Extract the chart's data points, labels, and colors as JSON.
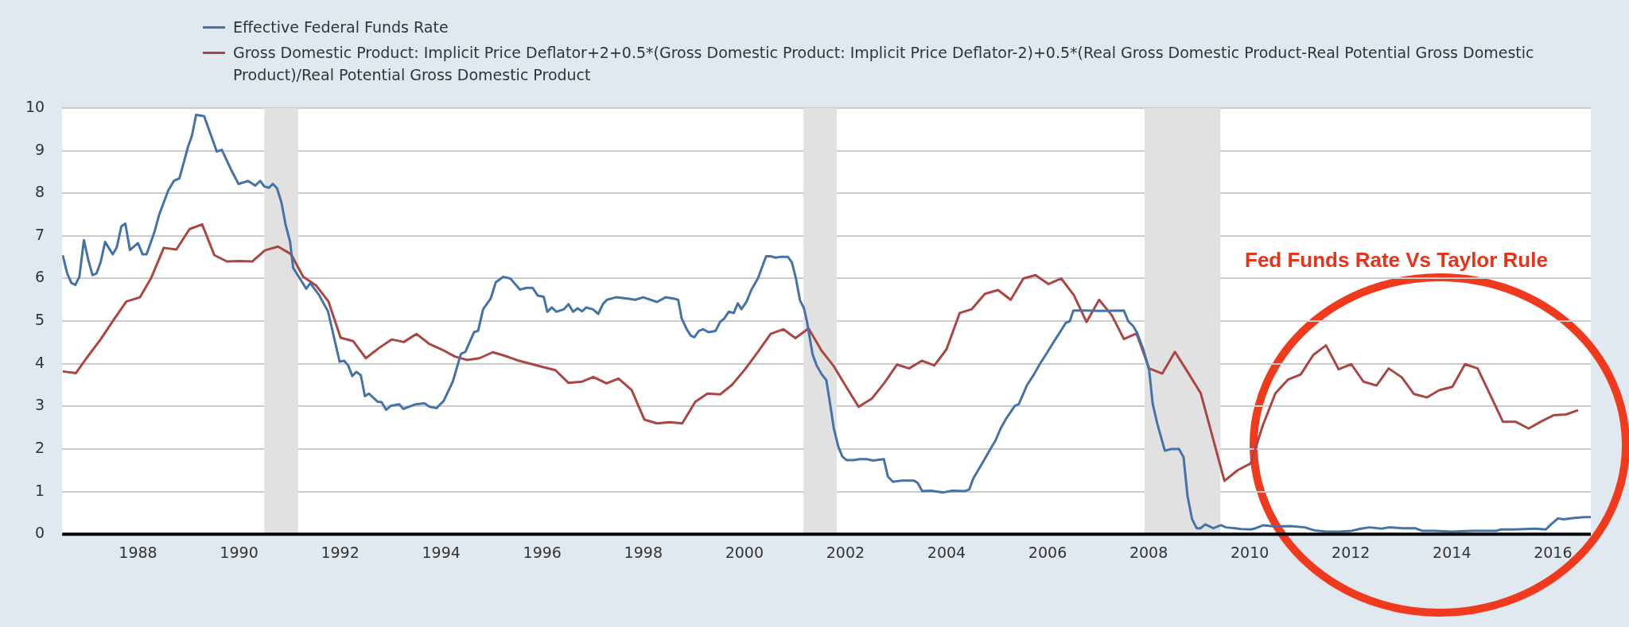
{
  "chart_data": {
    "type": "line",
    "xlim": [
      1986.5,
      2016.75
    ],
    "xticks": [
      1988,
      1990,
      1992,
      1994,
      1996,
      1998,
      2000,
      2002,
      2004,
      2006,
      2008,
      2010,
      2012,
      2014,
      2016
    ],
    "ylim": [
      0,
      10
    ],
    "yticks": [
      0,
      1,
      2,
      3,
      4,
      5,
      6,
      7,
      8,
      9,
      10
    ],
    "grid": "y",
    "legend": "top",
    "annotations": [
      "Fed Funds Rate Vs Taylor Rule"
    ],
    "bands": [
      {
        "axis": "x",
        "from": 1990.5,
        "to": 1991.17,
        "color": "#e1e1e1"
      },
      {
        "axis": "x",
        "from": 2001.17,
        "to": 2001.83,
        "color": "#e1e1e1"
      },
      {
        "axis": "x",
        "from": 2007.92,
        "to": 2009.42,
        "color": "#e1e1e1"
      }
    ],
    "series": [
      {
        "name": "Effective Federal Funds Rate",
        "color": "#4572a7",
        "x": [
          1986.51,
          1986.6,
          1986.68,
          1986.76,
          1986.84,
          1986.93,
          1987.02,
          1987.1,
          1987.18,
          1987.26,
          1987.35,
          1987.5,
          1987.58,
          1987.67,
          1987.75,
          1987.84,
          1988.0,
          1988.09,
          1988.17,
          1988.32,
          1988.42,
          1988.6,
          1988.71,
          1988.82,
          1988.99,
          1989.07,
          1989.15,
          1989.31,
          1989.56,
          1989.66,
          1989.84,
          1989.99,
          1990.18,
          1990.32,
          1990.42,
          1990.5,
          1990.59,
          1990.67,
          1990.75,
          1990.84,
          1990.92,
          1991.01,
          1991.07,
          1991.24,
          1991.33,
          1991.41,
          1991.58,
          1991.76,
          1991.99,
          1992.08,
          1992.16,
          1992.24,
          1992.32,
          1992.41,
          1992.49,
          1992.57,
          1992.74,
          1992.82,
          1992.91,
          1993.0,
          1993.17,
          1993.25,
          1993.5,
          1993.67,
          1993.77,
          1993.91,
          1994.05,
          1994.23,
          1994.39,
          1994.48,
          1994.65,
          1994.73,
          1994.83,
          1994.98,
          1995.08,
          1995.23,
          1995.37,
          1995.56,
          1995.69,
          1995.81,
          1995.91,
          1996.03,
          1996.1,
          1996.19,
          1996.28,
          1996.43,
          1996.52,
          1996.61,
          1996.7,
          1996.79,
          1996.87,
          1997.0,
          1997.11,
          1997.2,
          1997.28,
          1997.46,
          1997.69,
          1997.84,
          1998.0,
          1998.27,
          1998.44,
          1998.6,
          1998.69,
          1998.76,
          1998.86,
          1998.94,
          1999.01,
          1999.1,
          1999.18,
          1999.29,
          1999.43,
          1999.52,
          1999.6,
          1999.69,
          1999.79,
          1999.87,
          1999.94,
          2000.04,
          2000.14,
          2000.27,
          2000.43,
          2000.53,
          2000.62,
          2000.72,
          2000.86,
          2000.94,
          2001.02,
          2001.1,
          2001.18,
          2001.24,
          2001.35,
          2001.43,
          2001.53,
          2001.62,
          2001.7,
          2001.77,
          2001.86,
          2001.94,
          2002.02,
          2002.17,
          2002.28,
          2002.42,
          2002.55,
          2002.76,
          2002.84,
          2002.94,
          2003.12,
          2003.35,
          2003.43,
          2003.52,
          2003.69,
          2003.94,
          2004.11,
          2004.36,
          2004.45,
          2004.53,
          2004.73,
          2004.85,
          2004.97,
          2005.07,
          2005.19,
          2005.35,
          2005.43,
          2005.59,
          2005.73,
          2005.85,
          2005.99,
          2006.12,
          2006.26,
          2006.36,
          2006.44,
          2006.51,
          2006.71,
          2007.08,
          2007.51,
          2007.6,
          2007.69,
          2007.77,
          2007.89,
          2008.01,
          2008.08,
          2008.17,
          2008.32,
          2008.45,
          2008.6,
          2008.69,
          2008.77,
          2008.86,
          2008.95,
          2009.03,
          2009.12,
          2009.28,
          2009.43,
          2009.53,
          2009.71,
          2009.83,
          2010.02,
          2010.12,
          2010.27,
          2010.5,
          2010.81,
          2011.09,
          2011.28,
          2011.51,
          2011.78,
          2012.02,
          2012.2,
          2012.37,
          2012.61,
          2012.75,
          2013.03,
          2013.27,
          2013.41,
          2013.65,
          2014.0,
          2014.41,
          2014.89,
          2014.96,
          2015.24,
          2015.65,
          2015.86,
          2015.97,
          2016.1,
          2016.21,
          2016.42,
          2016.62,
          2016.75
        ],
        "values": [
          6.55,
          6.12,
          5.9,
          5.85,
          6.04,
          6.9,
          6.42,
          6.08,
          6.12,
          6.38,
          6.86,
          6.57,
          6.73,
          7.22,
          7.29,
          6.67,
          6.83,
          6.57,
          6.57,
          7.07,
          7.5,
          8.07,
          8.29,
          8.35,
          9.09,
          9.36,
          9.84,
          9.81,
          8.98,
          9.02,
          8.56,
          8.22,
          8.29,
          8.18,
          8.29,
          8.16,
          8.13,
          8.22,
          8.12,
          7.78,
          7.27,
          6.86,
          6.25,
          5.93,
          5.76,
          5.89,
          5.62,
          5.23,
          4.05,
          4.07,
          3.96,
          3.71,
          3.81,
          3.73,
          3.24,
          3.3,
          3.11,
          3.1,
          2.92,
          3.01,
          3.05,
          2.94,
          3.05,
          3.07,
          2.99,
          2.96,
          3.13,
          3.58,
          4.23,
          4.28,
          4.74,
          4.77,
          5.28,
          5.53,
          5.91,
          6.04,
          6.0,
          5.74,
          5.78,
          5.78,
          5.6,
          5.57,
          5.22,
          5.32,
          5.22,
          5.28,
          5.4,
          5.22,
          5.3,
          5.23,
          5.32,
          5.28,
          5.17,
          5.4,
          5.5,
          5.56,
          5.53,
          5.5,
          5.56,
          5.45,
          5.56,
          5.53,
          5.5,
          5.06,
          4.81,
          4.66,
          4.62,
          4.77,
          4.81,
          4.74,
          4.77,
          4.98,
          5.06,
          5.22,
          5.19,
          5.42,
          5.28,
          5.45,
          5.74,
          6.01,
          6.52,
          6.52,
          6.49,
          6.51,
          6.51,
          6.38,
          6.0,
          5.49,
          5.3,
          4.98,
          4.22,
          3.96,
          3.75,
          3.62,
          3.03,
          2.48,
          2.05,
          1.82,
          1.74,
          1.74,
          1.76,
          1.76,
          1.73,
          1.76,
          1.35,
          1.23,
          1.26,
          1.26,
          1.2,
          1.01,
          1.02,
          0.98,
          1.02,
          1.01,
          1.05,
          1.31,
          1.71,
          1.96,
          2.2,
          2.48,
          2.73,
          3.01,
          3.05,
          3.49,
          3.75,
          4.0,
          4.26,
          4.51,
          4.77,
          4.96,
          5.0,
          5.25,
          5.25,
          5.24,
          5.25,
          4.99,
          4.89,
          4.73,
          4.35,
          3.85,
          3.06,
          2.6,
          1.96,
          2.0,
          2.0,
          1.81,
          0.89,
          0.35,
          0.14,
          0.14,
          0.23,
          0.14,
          0.21,
          0.16,
          0.14,
          0.12,
          0.11,
          0.14,
          0.21,
          0.18,
          0.19,
          0.16,
          0.09,
          0.06,
          0.06,
          0.08,
          0.13,
          0.16,
          0.13,
          0.16,
          0.14,
          0.14,
          0.08,
          0.08,
          0.06,
          0.08,
          0.08,
          0.11,
          0.11,
          0.13,
          0.11,
          0.24,
          0.37,
          0.35,
          0.38,
          0.4,
          0.4
        ]
      },
      {
        "name": "Gross Domestic Product: Implicit Price Deflator+2+0.5*(Gross Domestic Product: Implicit Price Deflator-2)+0.5*(Real Gross Domestic Product-Real Potential Gross Domestic Product)/Real Potential Gross Domestic Product",
        "color": "#aa4643",
        "x": [
          1986.51,
          1986.77,
          1986.98,
          1987.26,
          1987.53,
          1987.77,
          1988.04,
          1988.26,
          1988.51,
          1988.76,
          1989.02,
          1989.27,
          1989.51,
          1989.76,
          1990.01,
          1990.26,
          1990.51,
          1990.77,
          1991.03,
          1991.27,
          1991.53,
          1991.77,
          1992.01,
          1992.26,
          1992.51,
          1992.77,
          1993.02,
          1993.26,
          1993.51,
          1993.76,
          1994.02,
          1994.27,
          1994.51,
          1994.76,
          1995.02,
          1995.25,
          1995.51,
          1995.77,
          1996.02,
          1996.26,
          1996.52,
          1996.79,
          1997.01,
          1997.27,
          1997.51,
          1997.77,
          1998.02,
          1998.27,
          1998.53,
          1998.77,
          1999.03,
          1999.27,
          1999.52,
          1999.76,
          2000.02,
          2000.27,
          2000.52,
          2000.77,
          2001.01,
          2001.27,
          2001.52,
          2001.77,
          2002.02,
          2002.26,
          2002.52,
          2002.77,
          2003.02,
          2003.26,
          2003.51,
          2003.76,
          2004.0,
          2004.26,
          2004.5,
          2004.76,
          2005.02,
          2005.27,
          2005.52,
          2005.76,
          2006.02,
          2006.27,
          2006.52,
          2006.77,
          2007.02,
          2007.27,
          2007.51,
          2007.76,
          2008.01,
          2008.27,
          2008.52,
          2008.77,
          2009.03,
          2009.5,
          2009.76,
          2010.02,
          2010.26,
          2010.51,
          2010.76,
          2011.01,
          2011.26,
          2011.51,
          2011.76,
          2012.01,
          2012.25,
          2012.51,
          2012.75,
          2013.01,
          2013.25,
          2013.51,
          2013.75,
          2014.01,
          2014.26,
          2014.51,
          2014.76,
          2015.01,
          2015.26,
          2015.52,
          2015.76,
          2016.01,
          2016.26,
          2016.5
        ],
        "values": [
          3.82,
          3.78,
          4.13,
          4.57,
          5.05,
          5.46,
          5.56,
          6.01,
          6.72,
          6.68,
          7.16,
          7.27,
          6.55,
          6.4,
          6.41,
          6.4,
          6.66,
          6.75,
          6.57,
          6.04,
          5.83,
          5.46,
          4.61,
          4.53,
          4.13,
          4.37,
          4.57,
          4.51,
          4.7,
          4.47,
          4.33,
          4.17,
          4.09,
          4.13,
          4.27,
          4.19,
          4.08,
          4.0,
          3.92,
          3.85,
          3.55,
          3.58,
          3.69,
          3.54,
          3.65,
          3.38,
          2.69,
          2.6,
          2.63,
          2.6,
          3.11,
          3.3,
          3.28,
          3.51,
          3.88,
          4.28,
          4.7,
          4.81,
          4.6,
          4.83,
          4.32,
          3.94,
          3.45,
          2.99,
          3.18,
          3.55,
          3.98,
          3.89,
          4.07,
          3.96,
          4.34,
          5.19,
          5.28,
          5.64,
          5.73,
          5.5,
          6.0,
          6.08,
          5.87,
          6.0,
          5.61,
          4.98,
          5.5,
          5.14,
          4.58,
          4.71,
          3.89,
          3.77,
          4.28,
          3.81,
          3.31,
          1.25,
          1.5,
          1.66,
          2.56,
          3.31,
          3.63,
          3.75,
          4.21,
          4.43,
          3.87,
          3.99,
          3.58,
          3.49,
          3.89,
          3.68,
          3.29,
          3.21,
          3.38,
          3.46,
          3.99,
          3.89,
          3.27,
          2.64,
          2.64,
          2.48,
          2.64,
          2.79,
          2.81,
          2.91
        ]
      }
    ]
  }
}
